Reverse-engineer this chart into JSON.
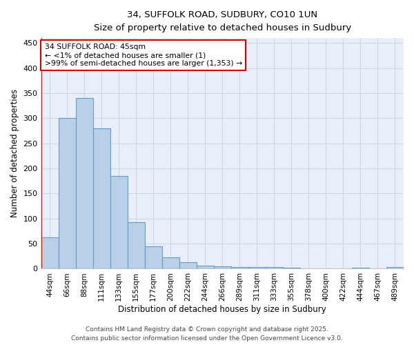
{
  "title_line1": "34, SUFFOLK ROAD, SUDBURY, CO10 1UN",
  "title_line2": "Size of property relative to detached houses in Sudbury",
  "xlabel": "Distribution of detached houses by size in Sudbury",
  "ylabel": "Number of detached properties",
  "categories": [
    "44sqm",
    "66sqm",
    "88sqm",
    "111sqm",
    "133sqm",
    "155sqm",
    "177sqm",
    "200sqm",
    "222sqm",
    "244sqm",
    "266sqm",
    "289sqm",
    "311sqm",
    "333sqm",
    "355sqm",
    "378sqm",
    "400sqm",
    "422sqm",
    "444sqm",
    "467sqm",
    "489sqm"
  ],
  "values": [
    63,
    300,
    340,
    280,
    185,
    93,
    45,
    23,
    13,
    6,
    5,
    4,
    4,
    3,
    2,
    1,
    0,
    0,
    2,
    0,
    4
  ],
  "bar_color": "#b8d0e8",
  "bar_edge_color": "#6699cc",
  "ylim": [
    0,
    460
  ],
  "yticks": [
    0,
    50,
    100,
    150,
    200,
    250,
    300,
    350,
    400,
    450
  ],
  "annotation_box_text": "34 SUFFOLK ROAD: 45sqm\n← <1% of detached houses are smaller (1)\n>99% of semi-detached houses are larger (1,353) →",
  "annotation_box_color": "#ffffff",
  "annotation_box_edge_color": "#cc0000",
  "red_line_color": "#cc0000",
  "grid_color": "#c8d8e8",
  "bg_color": "#e8eff8",
  "footer_line1": "Contains HM Land Registry data © Crown copyright and database right 2025.",
  "footer_line2": "Contains public sector information licensed under the Open Government Licence v3.0."
}
